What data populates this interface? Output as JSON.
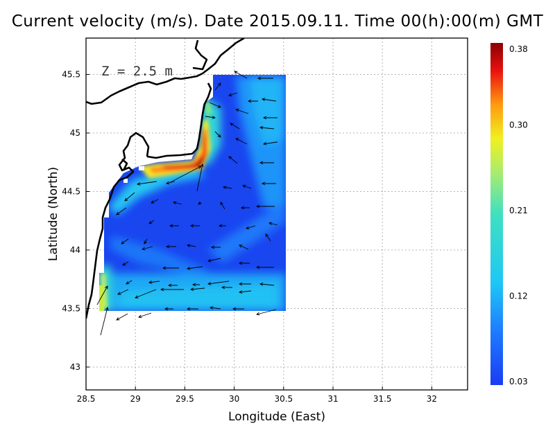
{
  "title": "Current velocity (m/s). Date 2015.09.11. Time 00(h):00(m) GMT",
  "map": {
    "depth_label": "Z = 2.5 m",
    "xlabel": "Longitude (East)",
    "ylabel": "Latitude (North)",
    "lon_range": [
      28.5,
      32.4
    ],
    "lat_range": [
      42.8,
      45.8
    ],
    "x_ticks": [
      "28.5",
      "29",
      "29.5",
      "30",
      "30.5",
      "31",
      "31.5",
      "32"
    ],
    "y_ticks": [
      "43",
      "43.5",
      "44",
      "44.5",
      "45",
      "45.5"
    ],
    "grid": "dotted",
    "field_extent": {
      "lon": [
        28.6,
        30.55
      ],
      "lat": [
        43.48,
        45.5
      ]
    }
  },
  "colorbar": {
    "min": 0.03,
    "max": 0.38,
    "labels": [
      "0.38",
      "0.30",
      "0.21",
      "0.12",
      "0.03"
    ],
    "colors": [
      "#1a3cf2",
      "#1e90ff",
      "#22ddf0",
      "#8ee68a",
      "#f0f020",
      "#ff8a10",
      "#e41010",
      "#8b0000"
    ]
  },
  "colors": {
    "land_outline": "#000000",
    "background": "#ffffff",
    "arrows": "#000000"
  }
}
